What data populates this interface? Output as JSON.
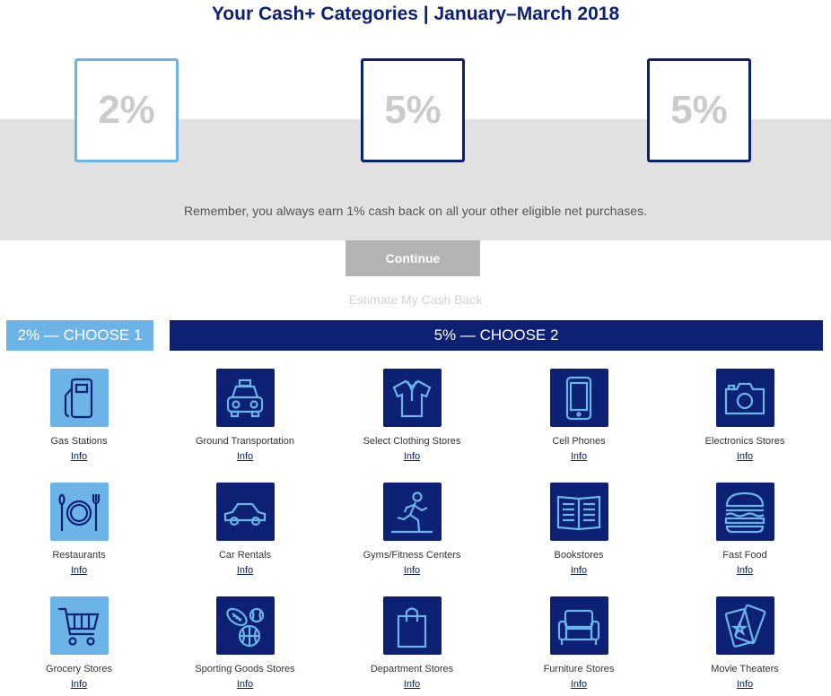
{
  "title": "Your Cash+ Categories | January–March 2018",
  "slots": [
    "2%",
    "5%",
    "5%"
  ],
  "remember_text": "Remember, you always earn 1% cash back on all your other eligible net purchases.",
  "continue_label": "Continue",
  "estimate_label": "Estimate My Cash Back",
  "header_2pct": "2% — CHOOSE 1",
  "header_5pct": "5% — CHOOSE 2",
  "info_label": "Info",
  "colors": {
    "navy": "#0c2074",
    "light_blue": "#6cb4e8",
    "gray_band": "#e1e1e1",
    "button_gray": "#b3b3b3"
  },
  "categories": [
    {
      "name": "Gas Stations",
      "icon": "gas-pump-icon"
    },
    {
      "name": "Ground Transportation",
      "icon": "taxi-icon"
    },
    {
      "name": "Select Clothing Stores",
      "icon": "shirt-icon"
    },
    {
      "name": "Cell Phones",
      "icon": "phone-icon"
    },
    {
      "name": "Electronics Stores",
      "icon": "camera-icon"
    },
    {
      "name": "Restaurants",
      "icon": "plate-utensils-icon"
    },
    {
      "name": "Car Rentals",
      "icon": "car-icon"
    },
    {
      "name": "Gyms/Fitness Centers",
      "icon": "runner-icon"
    },
    {
      "name": "Bookstores",
      "icon": "book-icon"
    },
    {
      "name": "Fast Food",
      "icon": "burger-icon"
    },
    {
      "name": "Grocery Stores",
      "icon": "cart-icon"
    },
    {
      "name": "Sporting Goods Stores",
      "icon": "sports-balls-icon"
    },
    {
      "name": "Department Stores",
      "icon": "shopping-bag-icon"
    },
    {
      "name": "Furniture Stores",
      "icon": "armchair-icon"
    },
    {
      "name": "Movie Theaters",
      "icon": "tickets-icon"
    }
  ]
}
